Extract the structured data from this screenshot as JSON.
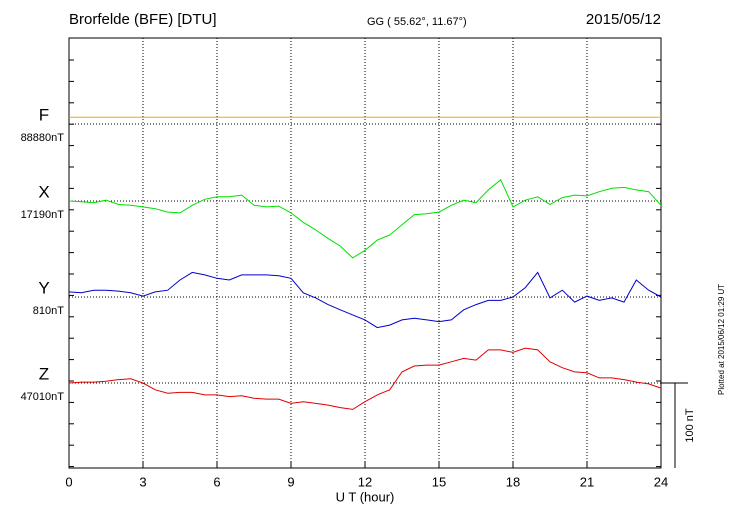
{
  "chart_data": {
    "type": "line",
    "title": "Brorfelde (BFE)  [DTU]",
    "subtitle": "GG ( 55.62°,  11.67°)",
    "date": "2015/05/12",
    "x_label": "U T (hour)",
    "note": "Plotted at 2015/06/12 01:29 UT",
    "xlim": [
      0,
      24
    ],
    "xticks": [
      0,
      3,
      6,
      9,
      12,
      15,
      18,
      21,
      24
    ],
    "grid": true,
    "scale_bar": {
      "value": 100,
      "label": "100 nT"
    },
    "x": [
      0,
      0.5,
      1,
      1.5,
      2,
      2.5,
      3,
      3.5,
      4,
      4.5,
      5,
      5.5,
      6,
      6.5,
      7,
      7.5,
      8,
      8.5,
      9,
      9.5,
      10,
      10.5,
      11,
      11.5,
      12,
      12.5,
      13,
      13.5,
      14,
      14.5,
      15,
      15.5,
      16,
      16.5,
      17,
      17.5,
      18,
      18.5,
      19,
      19.5,
      20,
      20.5,
      21,
      21.5,
      22,
      22.5,
      23,
      23.5,
      24
    ],
    "series": [
      {
        "name": "F",
        "color": "#f0a800",
        "baseline": {
          "value": 88880,
          "label": "88880nT"
        },
        "values": [
          88888,
          88888,
          88888,
          88888,
          88888,
          88888,
          88888,
          88888,
          88888,
          88888,
          88888,
          88888,
          88888,
          88888,
          88888,
          88888,
          88888,
          88888,
          88888,
          88888,
          88888,
          88888,
          88888,
          88888,
          88888,
          88888,
          88888,
          88888,
          88888,
          88888,
          88888,
          88888,
          88888,
          88888,
          88888,
          88888,
          88888,
          88888,
          88888,
          88888,
          88888,
          88888,
          88888,
          88888,
          88888,
          88888,
          88888,
          88888,
          88888
        ]
      },
      {
        "name": "X",
        "color": "#00e000",
        "baseline": {
          "value": 17190,
          "label": "17190nT"
        },
        "values": [
          17190,
          17189,
          17188,
          17191,
          17186,
          17185,
          17183,
          17181,
          17177,
          17176,
          17185,
          17192,
          17195,
          17195,
          17197,
          17185,
          17183,
          17184,
          17176,
          17165,
          17156,
          17146,
          17137,
          17123,
          17132,
          17144,
          17150,
          17162,
          17174,
          17175,
          17177,
          17185,
          17191,
          17188,
          17203,
          17215,
          17183,
          17191,
          17195,
          17186,
          17194,
          17197,
          17196,
          17201,
          17205,
          17206,
          17203,
          17201,
          17185
        ]
      },
      {
        "name": "Y",
        "color": "#0000cc",
        "baseline": {
          "value": 810,
          "label": "810nT"
        },
        "values": [
          816,
          815,
          818,
          818,
          817,
          815,
          811,
          816,
          818,
          830,
          839,
          836,
          832,
          830,
          836,
          836,
          836,
          835,
          832,
          815,
          809,
          801,
          795,
          789,
          783,
          774,
          777,
          783,
          785,
          783,
          781,
          783,
          795,
          801,
          806,
          806,
          810,
          821,
          839,
          809,
          818,
          804,
          811,
          806,
          809,
          804,
          830,
          818,
          810
        ]
      },
      {
        "name": "Z",
        "color": "#e00000",
        "baseline": {
          "value": 47010,
          "label": "47010nT"
        },
        "values": [
          47010,
          47011,
          47011,
          47012,
          47014,
          47015,
          47010,
          47002,
          46998,
          46999,
          46999,
          46996,
          46996,
          46994,
          46995,
          46992,
          46991,
          46991,
          46986,
          46988,
          46986,
          46984,
          46981,
          46979,
          46988,
          46996,
          47002,
          47023,
          47030,
          47031,
          47031,
          47035,
          47039,
          47037,
          47049,
          47049,
          47046,
          47051,
          47049,
          47035,
          47028,
          47023,
          47022,
          47016,
          47016,
          47014,
          47011,
          47009,
          47004
        ]
      }
    ]
  }
}
